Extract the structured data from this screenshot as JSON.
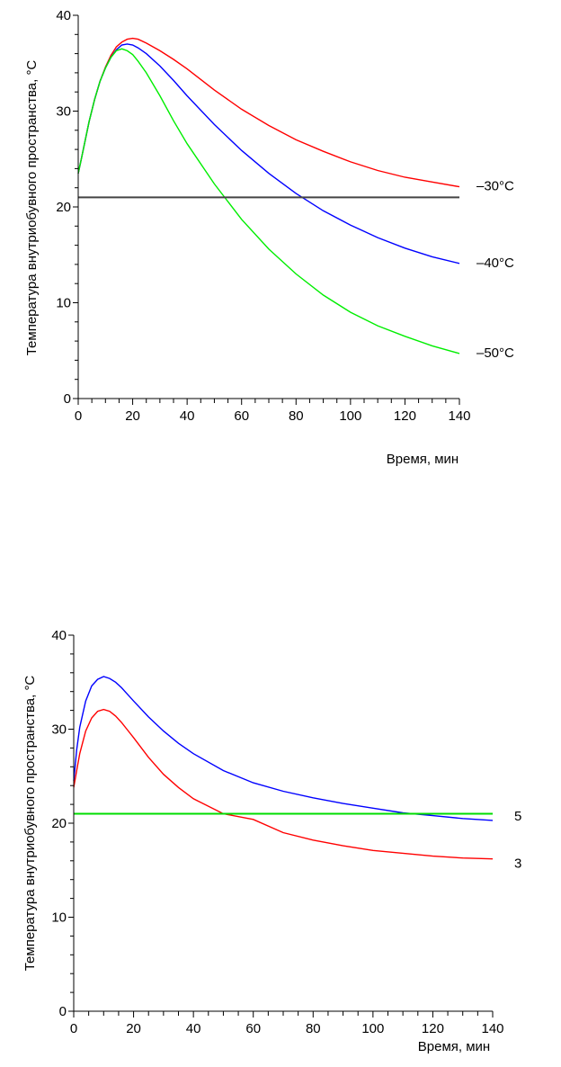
{
  "chart_data": [
    {
      "type": "line",
      "title": "",
      "xlabel": "Время, мин",
      "ylabel": "Температура внутриобувного пространства, °C",
      "xlim": [
        0,
        140
      ],
      "ylim": [
        0,
        40
      ],
      "x_major_ticks": [
        0,
        20,
        40,
        60,
        80,
        100,
        120,
        140
      ],
      "y_major_ticks": [
        0,
        10,
        20,
        30,
        40
      ],
      "grid": false,
      "legend": "none",
      "series": [
        {
          "name": "–30°C",
          "color": "#ff0000",
          "x": [
            0,
            1,
            2,
            4,
            6,
            8,
            10,
            12,
            14,
            16,
            18,
            20,
            22,
            25,
            30,
            35,
            40,
            50,
            60,
            70,
            80,
            90,
            100,
            110,
            120,
            130,
            140
          ],
          "y": [
            23.5,
            24.8,
            26.2,
            28.9,
            31.2,
            33.1,
            34.6,
            35.8,
            36.7,
            37.2,
            37.5,
            37.6,
            37.5,
            37.1,
            36.3,
            35.4,
            34.4,
            32.2,
            30.2,
            28.5,
            27.0,
            25.8,
            24.7,
            23.8,
            23.1,
            22.6,
            22.1
          ]
        },
        {
          "name": "–40°C",
          "color": "#0000ff",
          "x": [
            0,
            1,
            2,
            4,
            6,
            8,
            10,
            12,
            14,
            16,
            18,
            20,
            22,
            25,
            30,
            35,
            40,
            50,
            60,
            70,
            80,
            90,
            100,
            110,
            120,
            130,
            140
          ],
          "y": [
            23.5,
            24.8,
            26.2,
            28.9,
            31.2,
            33.1,
            34.5,
            35.6,
            36.4,
            36.9,
            37.0,
            36.9,
            36.6,
            36.0,
            34.7,
            33.2,
            31.6,
            28.6,
            25.9,
            23.5,
            21.4,
            19.6,
            18.1,
            16.8,
            15.7,
            14.8,
            14.1
          ]
        },
        {
          "name": "–50°C",
          "color": "#00ee00",
          "x": [
            0,
            1,
            2,
            4,
            6,
            8,
            10,
            12,
            14,
            16,
            18,
            20,
            22,
            25,
            30,
            35,
            40,
            50,
            60,
            70,
            80,
            90,
            100,
            110,
            120,
            130,
            140
          ],
          "y": [
            23.5,
            24.8,
            26.2,
            28.9,
            31.2,
            33.1,
            34.5,
            35.6,
            36.3,
            36.5,
            36.3,
            35.9,
            35.2,
            34.0,
            31.6,
            29.0,
            26.6,
            22.4,
            18.7,
            15.6,
            13.0,
            10.8,
            9.0,
            7.6,
            6.5,
            5.5,
            4.7
          ]
        }
      ],
      "reference_line": {
        "y": 21,
        "color": "#444444"
      }
    },
    {
      "type": "line",
      "title": "",
      "xlabel": "Время, мин",
      "ylabel": "Температура внутриобувного пространства, °C",
      "xlim": [
        0,
        140
      ],
      "ylim": [
        0,
        40
      ],
      "x_major_ticks": [
        0,
        20,
        40,
        60,
        80,
        100,
        120,
        140
      ],
      "y_major_ticks": [
        0,
        10,
        20,
        30,
        40
      ],
      "grid": false,
      "legend": "none",
      "series": [
        {
          "name": "5",
          "color": "#0000ff",
          "x": [
            0,
            1,
            2,
            4,
            6,
            8,
            10,
            12,
            14,
            16,
            18,
            20,
            25,
            30,
            35,
            40,
            50,
            60,
            70,
            80,
            90,
            100,
            110,
            120,
            130,
            140
          ],
          "y": [
            24.5,
            27.8,
            30.2,
            33.0,
            34.6,
            35.3,
            35.6,
            35.4,
            35.0,
            34.4,
            33.7,
            33.0,
            31.3,
            29.8,
            28.5,
            27.4,
            25.6,
            24.3,
            23.4,
            22.7,
            22.1,
            21.6,
            21.1,
            20.8,
            20.5,
            20.3
          ]
        },
        {
          "name": "3",
          "color": "#ff0000",
          "x": [
            0,
            1,
            2,
            4,
            6,
            8,
            10,
            12,
            14,
            16,
            18,
            20,
            25,
            30,
            35,
            40,
            50,
            60,
            70,
            80,
            90,
            100,
            110,
            120,
            130,
            140
          ],
          "y": [
            23.8,
            25.6,
            27.4,
            29.8,
            31.2,
            31.9,
            32.1,
            31.9,
            31.4,
            30.7,
            29.9,
            29.1,
            27.0,
            25.2,
            23.8,
            22.6,
            21.0,
            20.4,
            19.0,
            18.2,
            17.6,
            17.1,
            16.8,
            16.5,
            16.3,
            16.2
          ]
        }
      ],
      "reference_line": {
        "y": 21,
        "color": "#00dd00"
      }
    }
  ]
}
